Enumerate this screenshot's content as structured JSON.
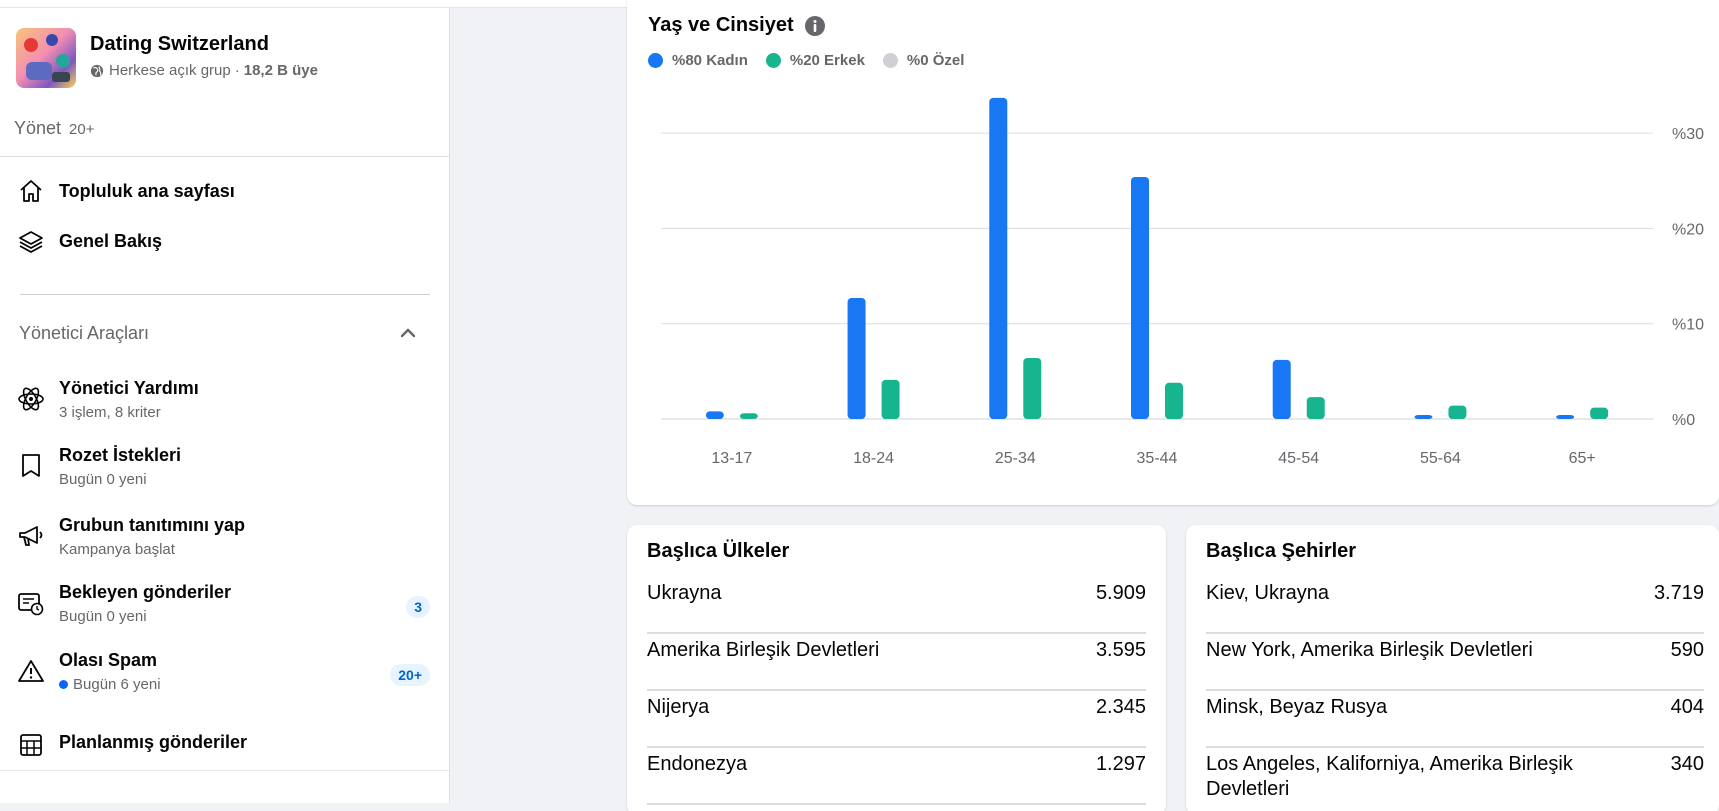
{
  "group": {
    "name": "Dating Switzerland",
    "privacy": "Herkese açık grup",
    "separator": "·",
    "members": "18,2 B üye"
  },
  "manage": {
    "label": "Yönet",
    "count": "20+"
  },
  "nav": [
    {
      "label": "Topluluk ana sayfası",
      "icon": "home-icon"
    },
    {
      "label": "Genel Bakış",
      "icon": "layers-icon"
    }
  ],
  "admin_tools": {
    "title": "Yönetici Araçları",
    "items": [
      {
        "title": "Yönetici Yardımı",
        "sub": "3 işlem, 8 kriter",
        "icon": "atom-icon"
      },
      {
        "title": "Rozet İstekleri",
        "sub": "Bugün 0 yeni",
        "icon": "badge-icon"
      },
      {
        "title": "Grubun tanıtımını yap",
        "sub": "Kampanya başlat",
        "icon": "megaphone-icon"
      },
      {
        "title": "Bekleyen gönderiler",
        "sub": "Bugün 0 yeni",
        "icon": "pending-posts-icon",
        "badge": "3"
      },
      {
        "title": "Olası Spam",
        "sub": "Bugün 6 yeni",
        "icon": "warning-icon",
        "badge": "20+"
      },
      {
        "title": "Planlanmış gönderiler",
        "sub": "",
        "icon": "calendar-icon"
      }
    ]
  },
  "colors": {
    "female": "#1877f2",
    "male": "#16b58f",
    "custom": "#ced0d4",
    "accent": "#0866ff"
  },
  "chart_data": {
    "type": "bar",
    "title": "Yaş ve Cinsiyet",
    "legend": [
      "%80 Kadın",
      "%20 Erkek",
      "%0 Özel"
    ],
    "categories": [
      "13-17",
      "18-24",
      "25-34",
      "35-44",
      "45-54",
      "55-64",
      "65+"
    ],
    "series": [
      {
        "name": "%80 Kadın",
        "values": [
          0.8,
          12.7,
          33.7,
          25.4,
          6.2,
          0.4,
          0.4
        ]
      },
      {
        "name": "%20 Erkek",
        "values": [
          0.6,
          4.1,
          6.4,
          3.8,
          2.3,
          1.4,
          1.2
        ]
      }
    ],
    "yticks": [
      "%0",
      "%10",
      "%20",
      "%30"
    ],
    "ylim": [
      0,
      34
    ]
  },
  "countries": {
    "title": "Başlıca Ülkeler",
    "rows": [
      {
        "name": "Ukrayna",
        "value": "5.909"
      },
      {
        "name": "Amerika Birleşik Devletleri",
        "value": "3.595"
      },
      {
        "name": "Nijerya",
        "value": "2.345"
      },
      {
        "name": "Endonezya",
        "value": "1.297"
      }
    ]
  },
  "cities": {
    "title": "Başlıca Şehirler",
    "rows": [
      {
        "name": "Kiev, Ukrayna",
        "value": "3.719"
      },
      {
        "name": "New York, Amerika Birleşik Devletleri",
        "value": "590"
      },
      {
        "name": "Minsk, Beyaz Rusya",
        "value": "404"
      },
      {
        "name": "Los Angeles, Kaliforniya, Amerika Birleşik Devletleri",
        "value": "340"
      }
    ]
  }
}
